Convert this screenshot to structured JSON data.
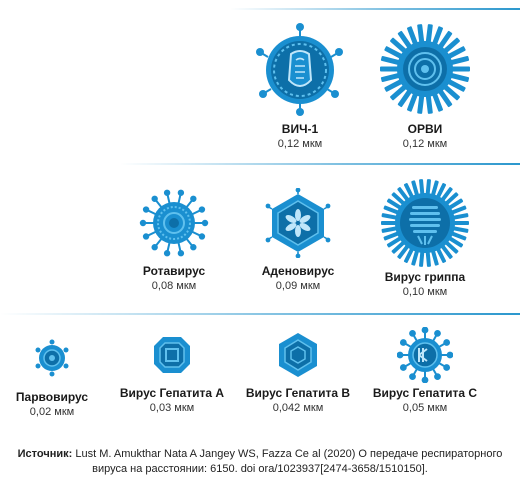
{
  "viruses": {
    "hiv": {
      "name": "ВИЧ-1",
      "size": "0,12 мкм"
    },
    "orvi": {
      "name": "ОРВИ",
      "size": "0,12 мкм"
    },
    "rota": {
      "name": "Ротавирус",
      "size": "0,08 мкм"
    },
    "adeno": {
      "name": "Аденовирус",
      "size": "0,09 мкм"
    },
    "flu": {
      "name": "Вирус гриппа",
      "size": "0,10 мкм"
    },
    "parvo": {
      "name": "Парвовирус",
      "size": "0,02 мкм"
    },
    "hepa": {
      "name": "Вирус Гепатита A",
      "size": "0,03 мкм"
    },
    "hepb": {
      "name": "Вирус Гепатита B",
      "size": "0,042 мкм"
    },
    "hepc": {
      "name": "Вирус Гепатита C",
      "size": "0,05 мкм"
    }
  },
  "source": {
    "label": "Источник:",
    "text": " Lust M. Amukthar Nata A Jangey WS, Fazza Ce al (2020) O передаче респираторного вируса на расстоянии: 6150. doi ora/1023937[2474-3658/1510150]."
  },
  "colors": {
    "primary": "#1a8fd0",
    "dark": "#0d5f95",
    "light": "#5fc0ee"
  }
}
